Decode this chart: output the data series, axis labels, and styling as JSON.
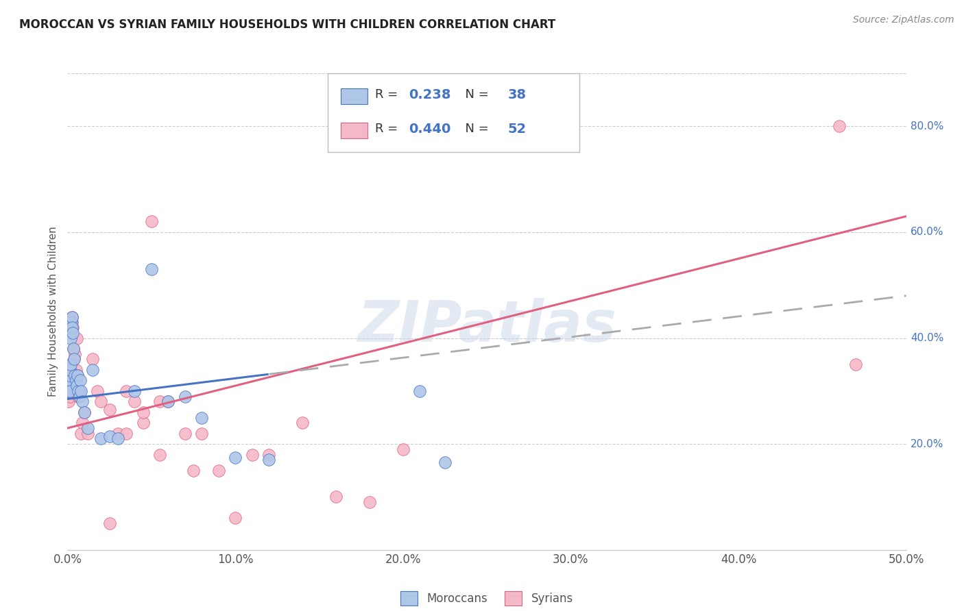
{
  "title": "MOROCCAN VS SYRIAN FAMILY HOUSEHOLDS WITH CHILDREN CORRELATION CHART",
  "source": "Source: ZipAtlas.com",
  "ylabel": "Family Households with Children",
  "xlim": [
    0.0,
    50.0
  ],
  "ylim_pct": [
    0.0,
    90.0
  ],
  "x_tick_vals": [
    0,
    10,
    20,
    30,
    40,
    50
  ],
  "x_tick_labels": [
    "0.0%",
    "10.0%",
    "20.0%",
    "30.0%",
    "40.0%",
    "50.0%"
  ],
  "y_tick_vals": [
    20,
    40,
    60,
    80
  ],
  "y_tick_labels": [
    "20.0%",
    "40.0%",
    "60.0%",
    "80.0%"
  ],
  "moroccan_R": 0.238,
  "moroccan_N": 38,
  "syrian_R": 0.44,
  "syrian_N": 52,
  "moroccan_color": "#aec6e8",
  "syrian_color": "#f5b8c8",
  "moroccan_line_color": "#4472C4",
  "syrian_line_color": "#E06080",
  "watermark": "ZIPatlas",
  "legend_moroccan_label": "Moroccans",
  "legend_syrian_label": "Syrians",
  "moroccan_x": [
    0.05,
    0.08,
    0.1,
    0.12,
    0.14,
    0.16,
    0.18,
    0.2,
    0.22,
    0.25,
    0.28,
    0.3,
    0.35,
    0.4,
    0.45,
    0.5,
    0.55,
    0.6,
    0.65,
    0.7,
    0.75,
    0.8,
    0.9,
    1.0,
    1.2,
    1.5,
    2.0,
    2.5,
    3.0,
    4.0,
    5.0,
    6.0,
    7.0,
    8.0,
    10.0,
    12.0,
    21.0,
    22.5
  ],
  "moroccan_y": [
    30.0,
    31.0,
    32.0,
    33.0,
    30.0,
    34.0,
    35.0,
    40.0,
    43.0,
    44.0,
    42.0,
    41.0,
    38.0,
    36.0,
    33.0,
    32.0,
    31.0,
    33.0,
    30.0,
    29.0,
    32.0,
    30.0,
    28.0,
    26.0,
    23.0,
    34.0,
    21.0,
    21.5,
    21.0,
    30.0,
    53.0,
    28.0,
    29.0,
    25.0,
    17.5,
    17.0,
    30.0,
    16.5
  ],
  "syrian_x": [
    0.05,
    0.08,
    0.1,
    0.12,
    0.14,
    0.16,
    0.18,
    0.2,
    0.22,
    0.25,
    0.28,
    0.3,
    0.35,
    0.4,
    0.45,
    0.5,
    0.55,
    0.6,
    0.65,
    0.7,
    0.8,
    0.9,
    1.0,
    1.2,
    1.5,
    1.8,
    2.0,
    2.5,
    3.0,
    3.5,
    4.0,
    4.5,
    5.0,
    5.5,
    6.0,
    7.0,
    7.5,
    8.0,
    9.0,
    10.0,
    11.0,
    12.0,
    14.0,
    16.0,
    18.0,
    20.0,
    3.5,
    4.5,
    5.5,
    46.0,
    2.5,
    47.0
  ],
  "syrian_y": [
    28.0,
    30.0,
    33.0,
    32.0,
    31.0,
    29.0,
    34.0,
    33.0,
    35.0,
    44.0,
    43.0,
    42.0,
    38.0,
    36.0,
    37.0,
    34.0,
    40.0,
    33.0,
    29.0,
    30.0,
    22.0,
    24.0,
    26.0,
    22.0,
    36.0,
    30.0,
    28.0,
    26.5,
    22.0,
    22.0,
    28.0,
    24.0,
    62.0,
    28.0,
    28.0,
    22.0,
    15.0,
    22.0,
    15.0,
    6.0,
    18.0,
    18.0,
    24.0,
    10.0,
    9.0,
    19.0,
    30.0,
    26.0,
    18.0,
    80.0,
    5.0,
    35.0
  ],
  "moroccan_trend_x0": 0.0,
  "moroccan_trend_y0": 28.5,
  "moroccan_trend_x1": 50.0,
  "moroccan_trend_y1": 48.0,
  "moroccan_solid_end": 12.0,
  "syrian_trend_x0": 0.0,
  "syrian_trend_y0": 23.0,
  "syrian_trend_x1": 50.0,
  "syrian_trend_y1": 63.0
}
